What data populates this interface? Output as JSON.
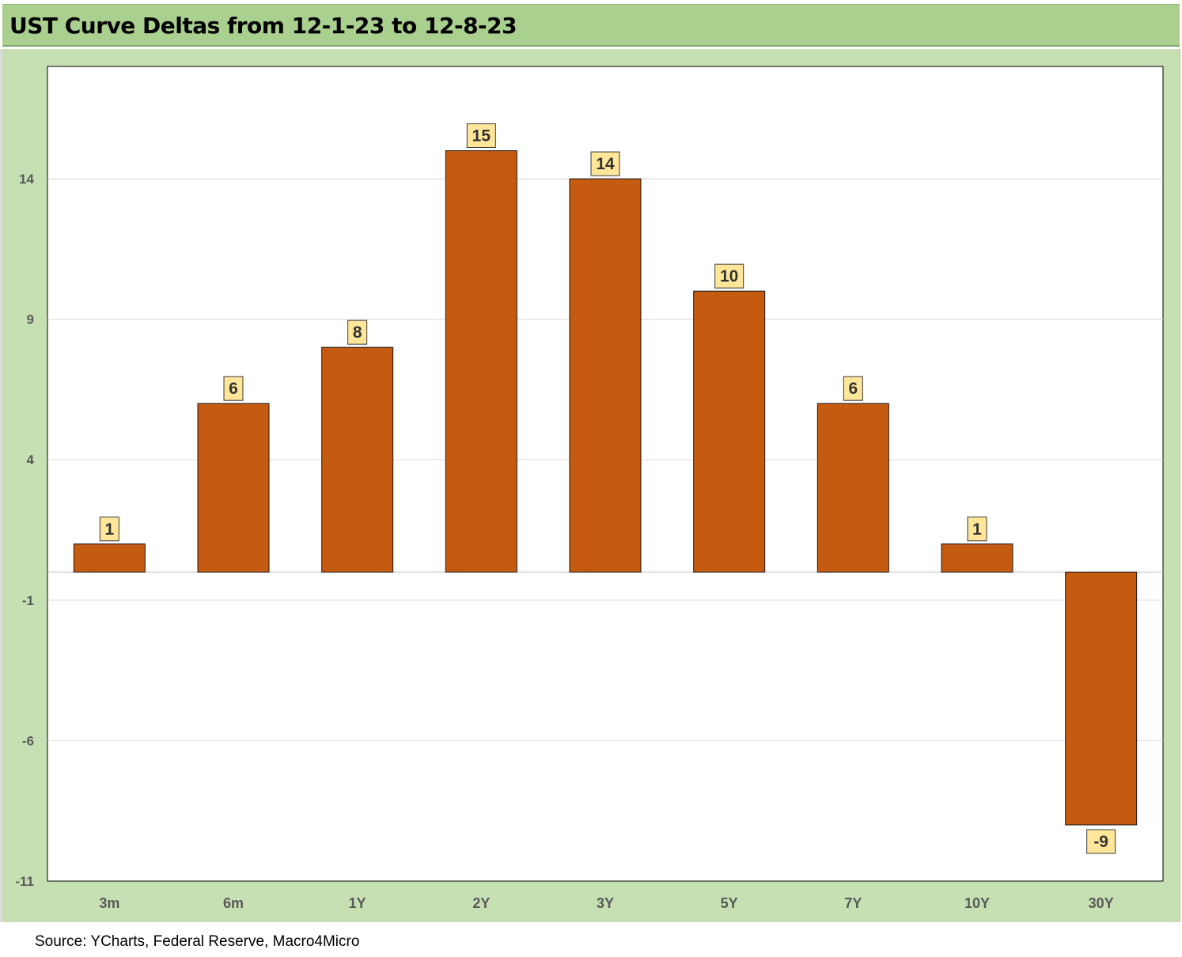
{
  "title": "UST Curve Deltas from 12-1-23 to 12-8-23",
  "source": "Source: YCharts, Federal Reserve, Macro4Micro",
  "colors": {
    "bar": "#c55a11",
    "label_bg": "#ffe699",
    "plot_bg": "#ffffff",
    "chart_bg": "#c6e0b4",
    "title_bg": "#a9d08e",
    "grid": "#d9d9d9",
    "axis_text": "#595959"
  },
  "chart_data": {
    "type": "bar",
    "title": "UST Curve Deltas from 12-1-23 to 12-8-23",
    "categories": [
      "3m",
      "6m",
      "1Y",
      "2Y",
      "3Y",
      "5Y",
      "7Y",
      "10Y",
      "30Y"
    ],
    "values": [
      1,
      6,
      8,
      15,
      14,
      10,
      6,
      1,
      -9
    ],
    "data_labels": [
      "1",
      "6",
      "8",
      "15",
      "14",
      "10",
      "6",
      "1",
      "-9"
    ],
    "ylim": [
      -11,
      18
    ],
    "yticks": [
      -11,
      -6,
      -1,
      4,
      9,
      14
    ],
    "ytick_labels": [
      "-11",
      "-6",
      "-1",
      "4",
      "9",
      "14"
    ],
    "xlabel": "",
    "ylabel": "",
    "grid": true,
    "legend": "none"
  }
}
